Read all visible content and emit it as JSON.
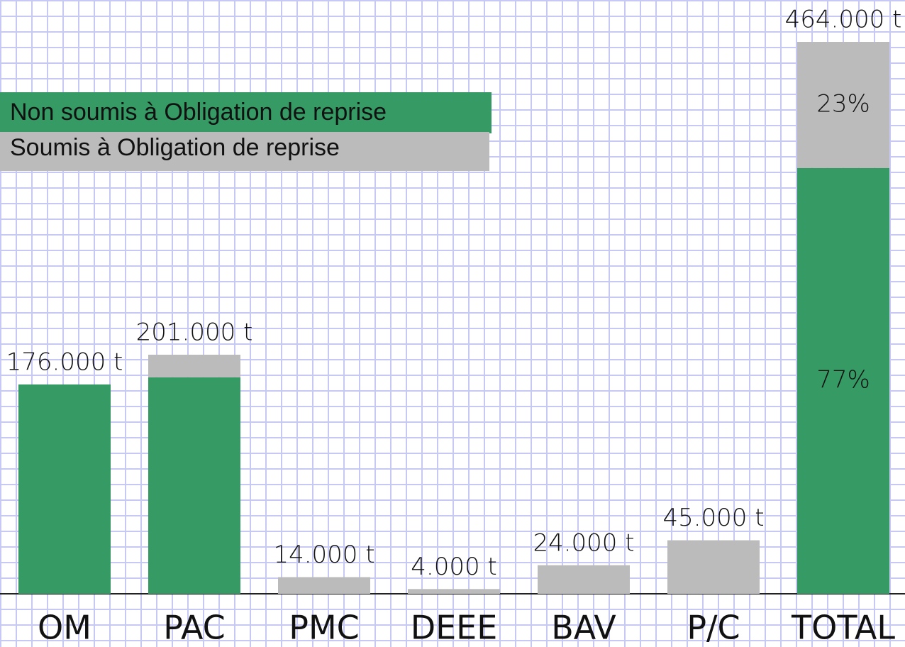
{
  "chart_data": {
    "type": "stacked_bar",
    "categories": [
      "OM",
      "PAC",
      "PMC",
      "DEEE",
      "BAV",
      "P/C",
      "TOTAL"
    ],
    "series": [
      {
        "name": "Non soumis à Obligation de reprise",
        "color": "#359a63",
        "values": [
          176000,
          182000,
          null,
          null,
          null,
          null,
          358000
        ]
      },
      {
        "name": "Soumis à Obligation de reprise",
        "color": "#bbbbbb",
        "values": [
          null,
          19000,
          14000,
          4000,
          24000,
          45000,
          106000
        ]
      }
    ],
    "totals": [
      176000,
      201000,
      14000,
      4000,
      24000,
      45000,
      464000
    ],
    "total_labels": [
      "176.000 t",
      "201.000 t",
      "14.000 t",
      "4.000 t",
      "24.000 t",
      "45.000 t",
      "464.000 t"
    ],
    "shares": {
      "values": [
        77,
        23
      ],
      "labels": [
        "77%",
        "23%"
      ]
    },
    "legend": "top-left"
  }
}
